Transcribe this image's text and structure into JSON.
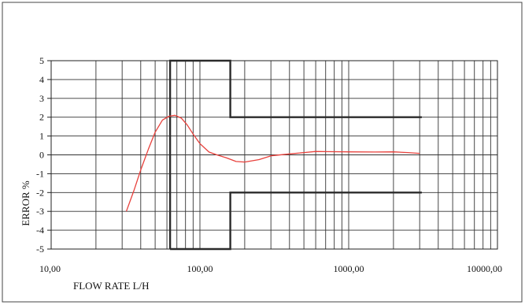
{
  "chart_data": {
    "type": "line",
    "x_scale": "log",
    "xlabel": "FLOW RATE L/H",
    "ylabel": "ERROR %",
    "xlim": [
      10,
      10000
    ],
    "ylim": [
      -5,
      5
    ],
    "grid": true,
    "x_ticks": [
      {
        "value": 10,
        "label": "10,00"
      },
      {
        "value": 100,
        "label": "100,00"
      },
      {
        "value": 1000,
        "label": "1000,00"
      },
      {
        "value": 10000,
        "label": "10000,00"
      }
    ],
    "y_ticks": [
      -5,
      -4,
      -3,
      -2,
      -1,
      0,
      1,
      2,
      3,
      4,
      5
    ],
    "series": [
      {
        "color": "#e8413c",
        "x": [
          32,
          36,
          40,
          45,
          50,
          56,
          62,
          68,
          75,
          82,
          90,
          100,
          115,
          130,
          150,
          175,
          200,
          250,
          300,
          400,
          500,
          600,
          700,
          1000,
          1500,
          2000,
          2500,
          3000
        ],
        "y": [
          -3.0,
          -1.9,
          -0.8,
          0.3,
          1.2,
          1.85,
          2.05,
          2.1,
          1.95,
          1.6,
          1.1,
          0.6,
          0.15,
          0.0,
          -0.15,
          -0.35,
          -0.38,
          -0.25,
          -0.05,
          0.05,
          0.12,
          0.18,
          0.17,
          0.16,
          0.15,
          0.16,
          0.12,
          0.08
        ]
      }
    ],
    "limit_lines": [
      {
        "color": "#2b2b2b",
        "x": [
          63,
          63,
          160,
          160,
          3100
        ],
        "y": [
          -5,
          5,
          5,
          2,
          2
        ]
      },
      {
        "color": "#2b2b2b",
        "x": [
          63,
          63,
          160,
          160,
          3100
        ],
        "y": [
          -5,
          -5,
          -5,
          -2,
          -2
        ]
      }
    ]
  }
}
